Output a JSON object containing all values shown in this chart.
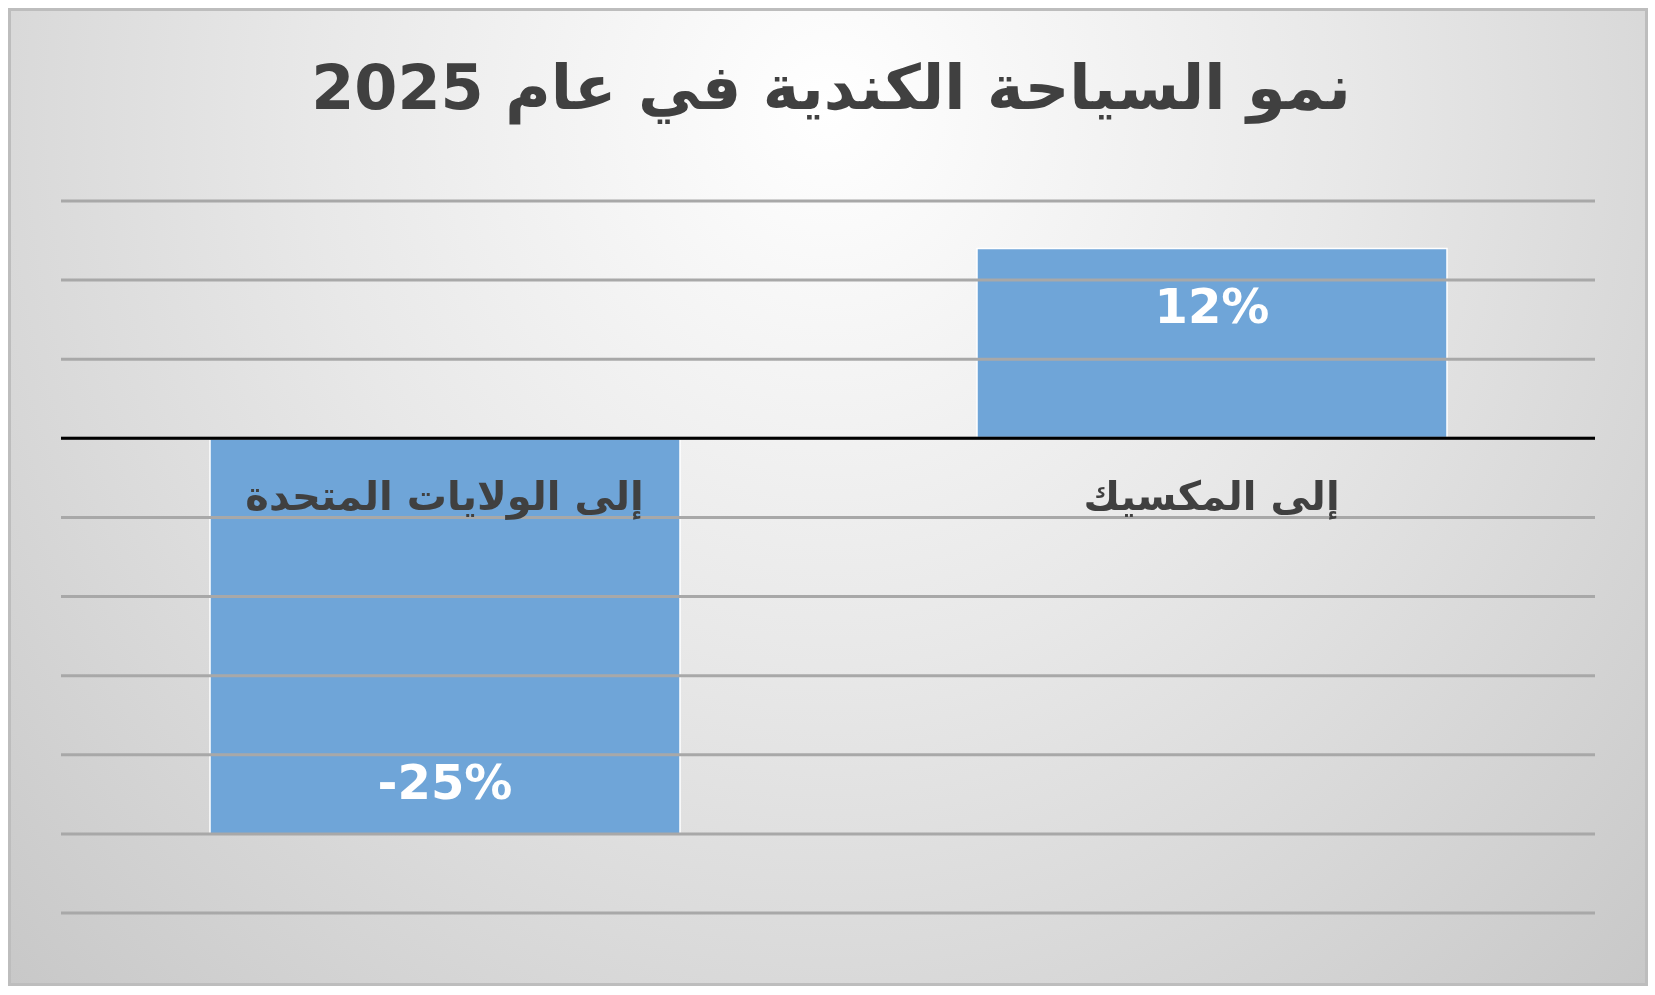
{
  "chart_data": {
    "type": "bar",
    "title": "نمو السياحة الكندية في عام 2025",
    "categories": [
      "إلى الولايات المتحدة",
      "إلى المكسيك"
    ],
    "values": [
      -25,
      12
    ],
    "color": "#6fa5d8",
    "value_labels": [
      "-25%",
      "12%"
    ],
    "ylim": [
      -30,
      15
    ],
    "yticks": [
      {
        "value": -30,
        "label": null
      },
      {
        "value": -25,
        "label": null
      },
      {
        "value": -20,
        "label": null
      },
      {
        "value": -15,
        "label": null
      },
      {
        "value": -10,
        "label": null
      },
      {
        "value": -5,
        "label": null
      },
      {
        "value": 0,
        "label": null
      },
      {
        "value": 5,
        "label": null
      },
      {
        "value": 10,
        "label": null
      },
      {
        "value": 15,
        "label": null
      }
    ],
    "grid": "y",
    "tick_labels": "x"
  }
}
